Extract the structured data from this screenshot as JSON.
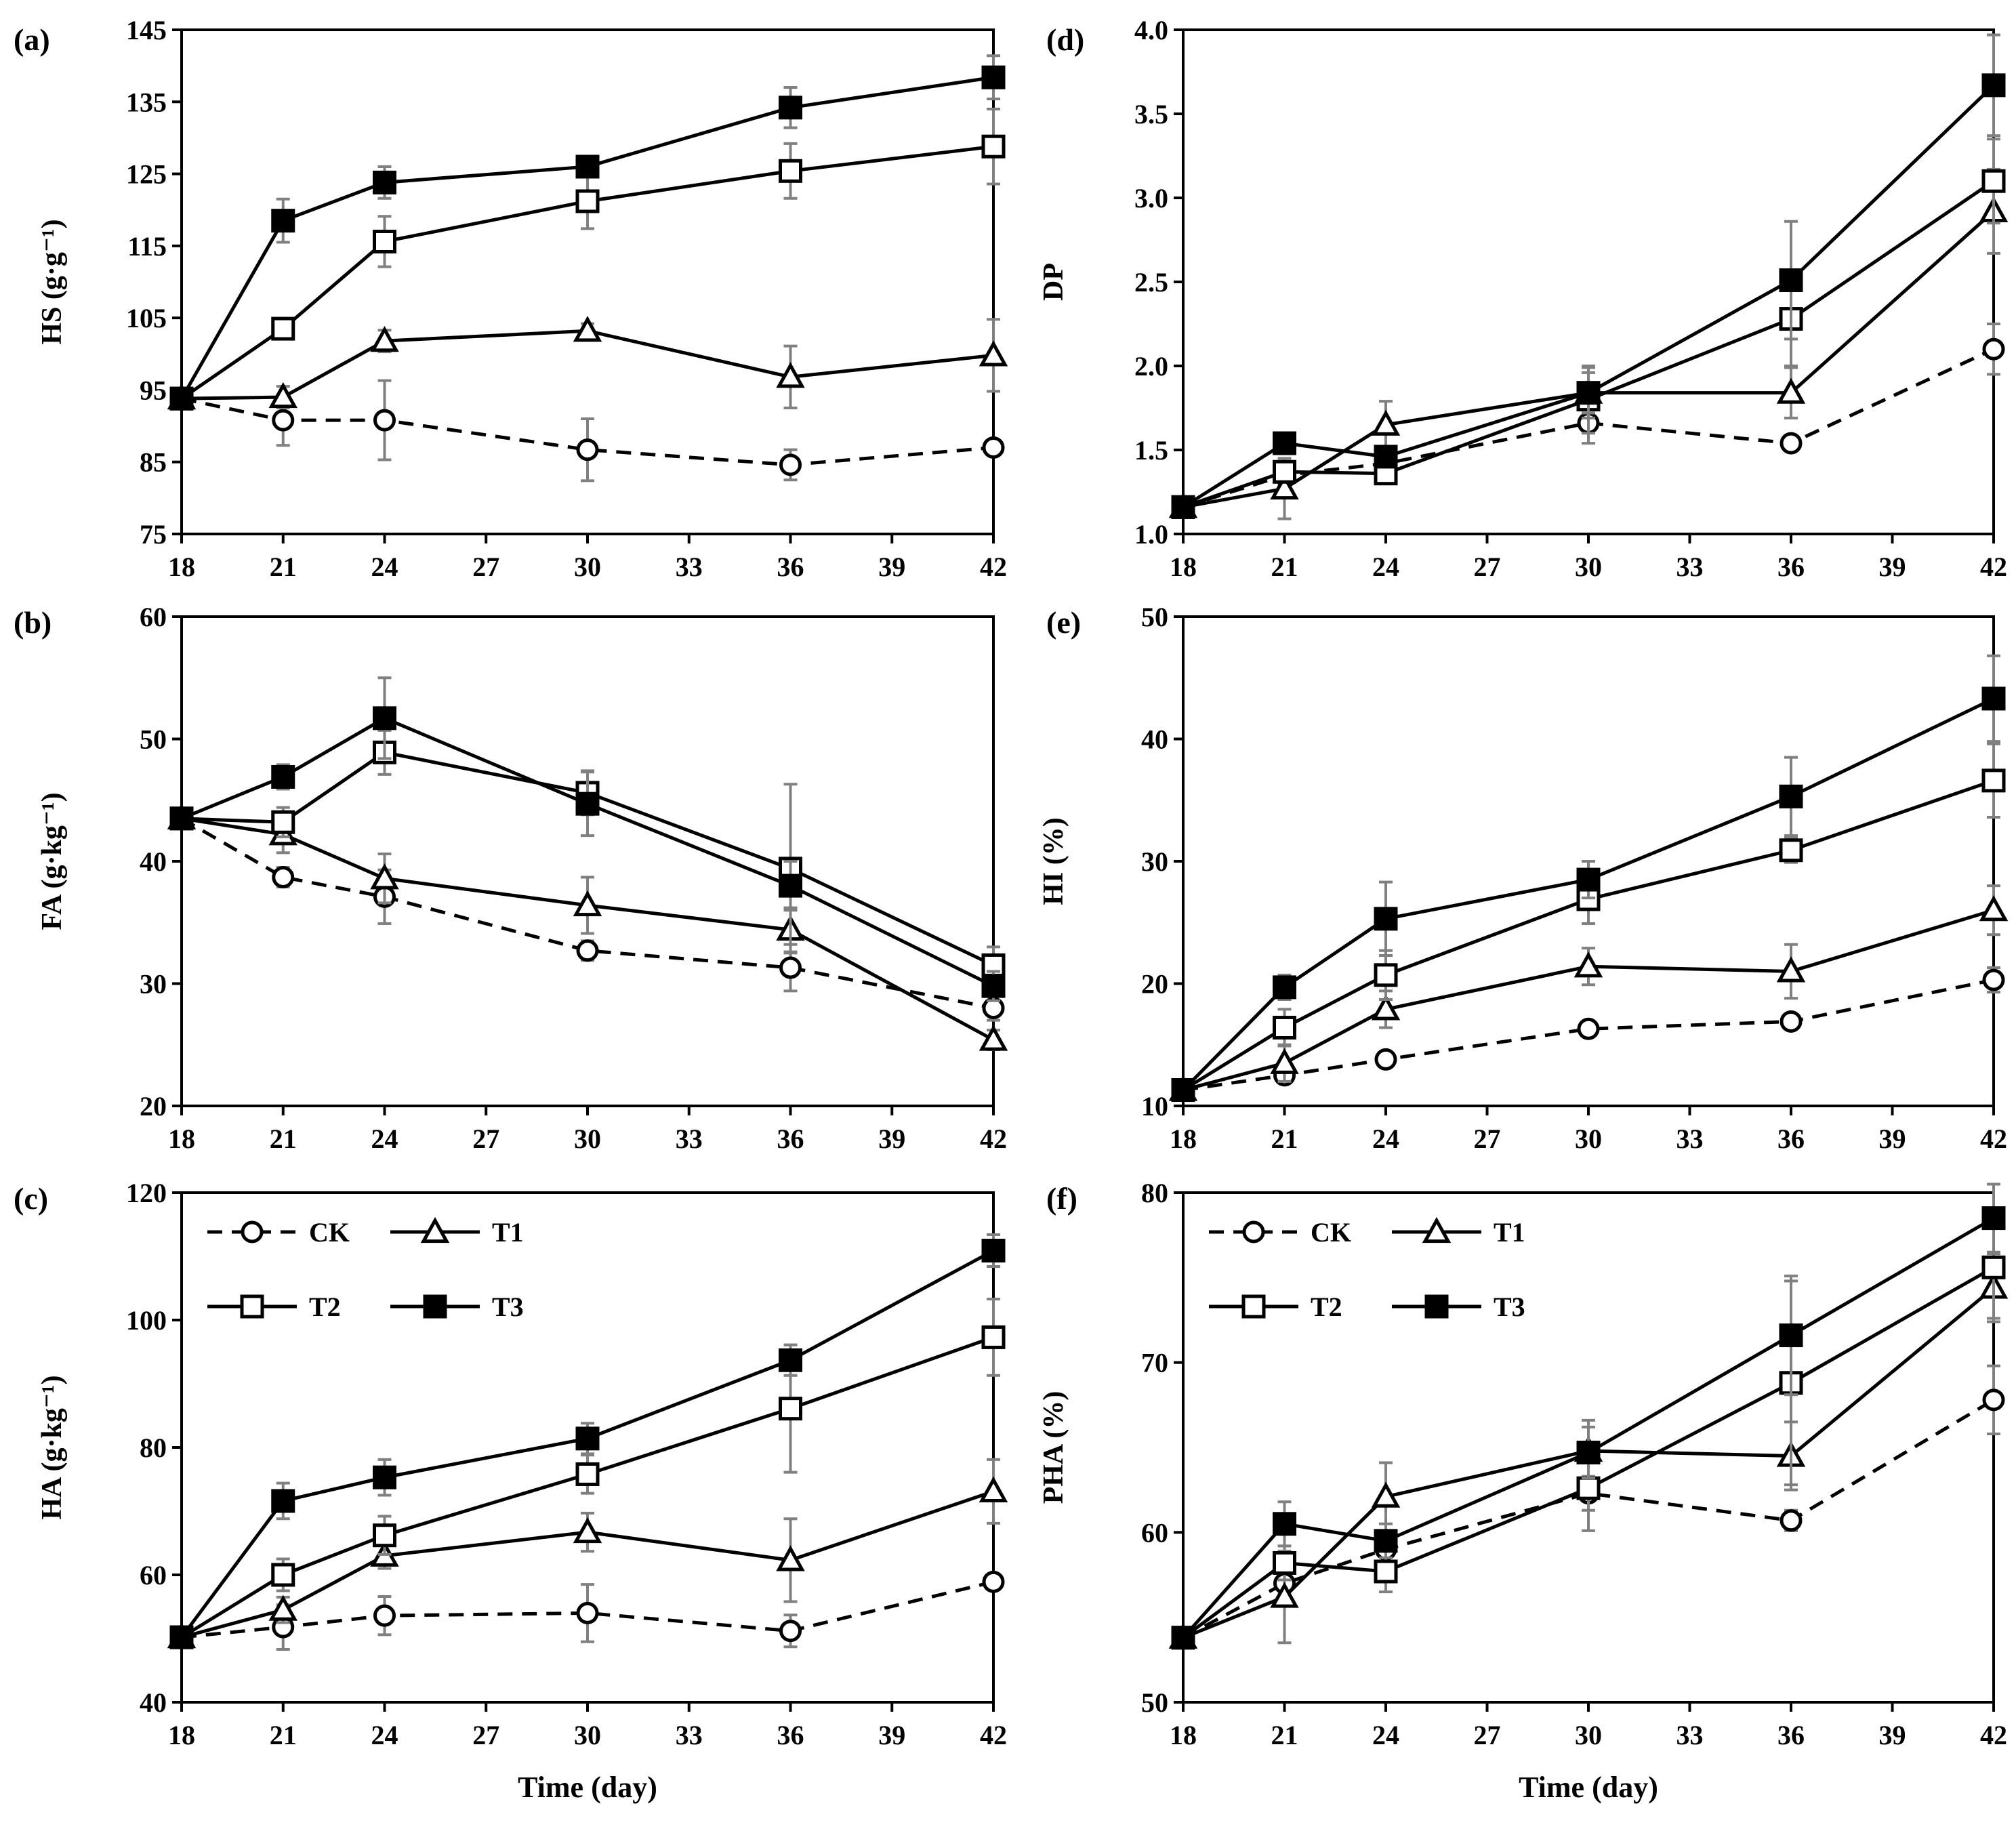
{
  "figure": {
    "x_title": "Time (day)",
    "series_names": [
      "CK",
      "T1",
      "T2",
      "T3"
    ],
    "colors": {
      "line": "#000000",
      "error_bar": "#808080",
      "background": "#ffffff"
    }
  },
  "chart_data": [
    {
      "type": "line",
      "panel": "(a)",
      "ylabel": "HS (g·g⁻¹)",
      "xlabel": "",
      "xlim": [
        18,
        42
      ],
      "xticks": [
        18,
        21,
        24,
        27,
        30,
        33,
        36,
        39,
        42
      ],
      "ylim": [
        75,
        145
      ],
      "yticks": [
        75,
        85,
        95,
        105,
        115,
        125,
        135,
        145
      ],
      "x": [
        18,
        21,
        24,
        30,
        36,
        42
      ],
      "series": [
        {
          "name": "CK",
          "values": [
            93.8,
            90.8,
            90.8,
            86.7,
            84.6,
            87.0
          ],
          "errors": [
            0,
            3.5,
            5.5,
            4.3,
            2.1,
            0
          ]
        },
        {
          "name": "T1",
          "values": [
            93.8,
            94.0,
            101.8,
            103.2,
            96.8,
            99.8
          ],
          "errors": [
            0,
            1.5,
            1.5,
            1.0,
            4.3,
            5.0
          ]
        },
        {
          "name": "T2",
          "values": [
            93.8,
            103.5,
            115.6,
            121.2,
            125.4,
            128.8
          ],
          "errors": [
            0,
            1.0,
            3.5,
            3.8,
            3.8,
            5.2
          ]
        },
        {
          "name": "T3",
          "values": [
            93.8,
            118.5,
            123.8,
            126.0,
            134.2,
            138.4
          ],
          "errors": [
            0,
            3.0,
            2.2,
            1.2,
            2.8,
            3.0
          ]
        }
      ]
    },
    {
      "type": "line",
      "panel": "(b)",
      "ylabel": "FA (g·kg⁻¹)",
      "xlabel": "",
      "xlim": [
        18,
        42
      ],
      "xticks": [
        18,
        21,
        24,
        27,
        30,
        33,
        36,
        39,
        42
      ],
      "ylim": [
        20,
        60
      ],
      "yticks": [
        20,
        30,
        40,
        50,
        60
      ],
      "x": [
        18,
        21,
        24,
        30,
        36,
        42
      ],
      "series": [
        {
          "name": "CK",
          "values": [
            43.5,
            38.7,
            37.1,
            32.7,
            31.3,
            28.0
          ],
          "errors": [
            0,
            0.8,
            2.2,
            0.8,
            1.9,
            1.0
          ]
        },
        {
          "name": "T1",
          "values": [
            43.5,
            42.2,
            38.6,
            36.4,
            34.4,
            25.4
          ],
          "errors": [
            0,
            1.5,
            2.0,
            2.3,
            1.8,
            0.8
          ]
        },
        {
          "name": "T2",
          "values": [
            43.5,
            43.2,
            48.9,
            45.6,
            39.4,
            31.5
          ],
          "errors": [
            0,
            1.2,
            1.8,
            1.8,
            6.9,
            1.5
          ]
        },
        {
          "name": "T3",
          "values": [
            43.5,
            46.9,
            51.7,
            44.7,
            38.0,
            29.8
          ],
          "errors": [
            0,
            1.0,
            3.3,
            2.6,
            2.0,
            1.2
          ]
        }
      ]
    },
    {
      "type": "line",
      "panel": "(c)",
      "ylabel": "HA (g·kg⁻¹)",
      "xlabel": "Time (day)",
      "xlim": [
        18,
        42
      ],
      "xticks": [
        18,
        21,
        24,
        27,
        30,
        33,
        36,
        39,
        42
      ],
      "ylim": [
        40,
        120
      ],
      "yticks": [
        40,
        60,
        80,
        100,
        120
      ],
      "x": [
        18,
        21,
        24,
        30,
        36,
        42
      ],
      "legend": "top-left",
      "series": [
        {
          "name": "CK",
          "values": [
            50.2,
            51.8,
            53.6,
            54.0,
            51.2,
            58.9
          ],
          "errors": [
            0,
            3.5,
            3.0,
            4.5,
            2.5,
            0
          ]
        },
        {
          "name": "T1",
          "values": [
            50.2,
            54.5,
            63.0,
            66.7,
            62.3,
            73.1
          ],
          "errors": [
            0,
            2.0,
            2.0,
            3.0,
            6.5,
            5.0
          ]
        },
        {
          "name": "T2",
          "values": [
            50.2,
            60.0,
            66.2,
            75.8,
            86.1,
            97.3
          ],
          "errors": [
            0,
            2.5,
            3.0,
            3.0,
            10.0,
            6.0
          ]
        },
        {
          "name": "T3",
          "values": [
            50.2,
            71.6,
            75.3,
            81.4,
            93.7,
            110.9
          ],
          "errors": [
            0,
            2.8,
            2.8,
            2.4,
            2.4,
            2.5
          ]
        }
      ]
    },
    {
      "type": "line",
      "panel": "(d)",
      "ylabel": "DP",
      "xlabel": "",
      "xlim": [
        18,
        42
      ],
      "xticks": [
        18,
        21,
        24,
        27,
        30,
        33,
        36,
        39,
        42
      ],
      "ylim": [
        1.0,
        4.0
      ],
      "yticks": [
        "1.0",
        "1.5",
        "2.0",
        "2.5",
        "3.0",
        "3.5",
        "4.0"
      ],
      "x": [
        18,
        21,
        24,
        30,
        36,
        42
      ],
      "series": [
        {
          "name": "CK",
          "values": [
            1.16,
            1.35,
            1.42,
            1.66,
            1.54,
            2.1
          ],
          "errors": [
            0,
            0.05,
            0.05,
            0.12,
            0.04,
            0.15
          ]
        },
        {
          "name": "T1",
          "values": [
            1.16,
            1.27,
            1.65,
            1.84,
            1.84,
            2.92
          ],
          "errors": [
            0,
            0.18,
            0.14,
            0.12,
            0.15,
            0.25
          ]
        },
        {
          "name": "T2",
          "values": [
            1.16,
            1.37,
            1.36,
            1.8,
            2.28,
            3.1
          ],
          "errors": [
            0,
            0.06,
            0.05,
            0.2,
            0.28,
            0.25
          ]
        },
        {
          "name": "T3",
          "values": [
            1.16,
            1.54,
            1.46,
            1.84,
            2.51,
            3.67
          ],
          "errors": [
            0,
            0.05,
            0.05,
            0.15,
            0.35,
            0.3
          ]
        }
      ]
    },
    {
      "type": "line",
      "panel": "(e)",
      "ylabel": "HI (%)",
      "xlabel": "",
      "xlim": [
        18,
        42
      ],
      "xticks": [
        18,
        21,
        24,
        27,
        30,
        33,
        36,
        39,
        42
      ],
      "ylim": [
        10,
        50
      ],
      "yticks": [
        10,
        20,
        30,
        40,
        50
      ],
      "x": [
        18,
        21,
        24,
        30,
        36,
        42
      ],
      "series": [
        {
          "name": "CK",
          "values": [
            11.3,
            12.5,
            13.8,
            16.3,
            16.9,
            20.3
          ],
          "errors": [
            0,
            0.5,
            0.5,
            0.6,
            0.6,
            1.0
          ]
        },
        {
          "name": "T1",
          "values": [
            11.3,
            13.5,
            17.9,
            21.4,
            21.0,
            26.0
          ],
          "errors": [
            0,
            1.5,
            1.5,
            1.5,
            2.2,
            2.0
          ]
        },
        {
          "name": "T2",
          "values": [
            11.3,
            16.4,
            20.7,
            26.9,
            30.9,
            36.6
          ],
          "errors": [
            0,
            1.5,
            2.0,
            2.0,
            1.0,
            3.0
          ]
        },
        {
          "name": "T3",
          "values": [
            11.3,
            19.7,
            25.3,
            28.5,
            35.3,
            43.3
          ],
          "errors": [
            0,
            1.0,
            3.0,
            1.5,
            3.2,
            3.5
          ]
        }
      ]
    },
    {
      "type": "line",
      "panel": "(f)",
      "ylabel": "PHA (%)",
      "xlabel": "Time (day)",
      "xlim": [
        18,
        42
      ],
      "xticks": [
        18,
        21,
        24,
        27,
        30,
        33,
        36,
        39,
        42
      ],
      "ylim": [
        50,
        80
      ],
      "yticks": [
        50,
        60,
        70,
        80
      ],
      "x": [
        18,
        21,
        24,
        30,
        36,
        42
      ],
      "legend": "top-left",
      "series": [
        {
          "name": "CK",
          "values": [
            53.8,
            57.0,
            59.0,
            62.3,
            60.7,
            67.8
          ],
          "errors": [
            0,
            0.8,
            0.8,
            1.0,
            0.6,
            2.0
          ]
        },
        {
          "name": "T1",
          "values": [
            53.8,
            56.2,
            62.1,
            64.8,
            64.5,
            74.4
          ],
          "errors": [
            0,
            2.7,
            2.0,
            1.8,
            2.0,
            2.0
          ]
        },
        {
          "name": "T2",
          "values": [
            53.8,
            58.2,
            57.7,
            62.6,
            68.8,
            75.6
          ],
          "errors": [
            0,
            1.0,
            1.2,
            2.5,
            6.0,
            3.0
          ]
        },
        {
          "name": "T3",
          "values": [
            53.8,
            60.5,
            59.5,
            64.7,
            71.6,
            78.5
          ],
          "errors": [
            0,
            1.3,
            1.0,
            1.5,
            3.5,
            2.0
          ]
        }
      ]
    }
  ]
}
